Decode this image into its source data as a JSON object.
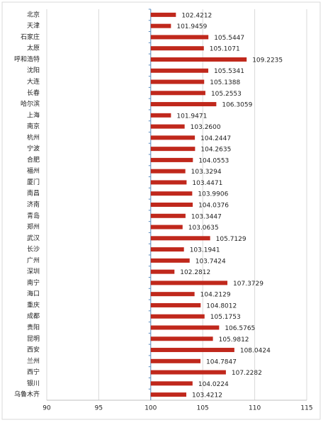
{
  "chart_data": {
    "type": "hbar",
    "categories": [
      "北京",
      "天津",
      "石家庄",
      "太原",
      "呼和浩特",
      "沈阳",
      "大连",
      "长春",
      "哈尔滨",
      "上海",
      "南京",
      "杭州",
      "宁波",
      "合肥",
      "福州",
      "厦门",
      "南昌",
      "济南",
      "青岛",
      "郑州",
      "武汉",
      "长沙",
      "广州",
      "深圳",
      "南宁",
      "海口",
      "重庆",
      "成都",
      "贵阳",
      "昆明",
      "西安",
      "兰州",
      "西宁",
      "银川",
      "乌鲁木齐"
    ],
    "values": [
      102.4212,
      101.9459,
      105.5447,
      105.1071,
      109.2235,
      105.5341,
      105.1388,
      105.2553,
      106.3059,
      101.9471,
      103.26,
      104.2447,
      104.2635,
      104.0553,
      103.3294,
      103.4471,
      103.9906,
      104.0376,
      103.3447,
      103.0635,
      105.7129,
      103.1941,
      103.7424,
      102.2812,
      107.3729,
      104.2129,
      104.8012,
      105.1753,
      106.5765,
      105.9812,
      108.0424,
      104.7847,
      107.2282,
      104.0224,
      103.4212
    ],
    "value_labels": [
      "102.4212",
      "101.9459",
      "105.5447",
      "105.1071",
      "109.2235",
      "105.5341",
      "105.1388",
      "105.2553",
      "106.3059",
      "101.9471",
      "103.2600",
      "104.2447",
      "104.2635",
      "104.0553",
      "103.3294",
      "103.4471",
      "103.9906",
      "104.0376",
      "103.3447",
      "103.0635",
      "105.7129",
      "103.1941",
      "103.7424",
      "102.2812",
      "107.3729",
      "104.2129",
      "104.8012",
      "105.1753",
      "106.5765",
      "105.9812",
      "108.0424",
      "104.7847",
      "107.2282",
      "104.0224",
      "103.4212"
    ],
    "color": "#c0281c",
    "baseline": 100,
    "xlim": [
      90,
      115
    ],
    "xticks": [
      90,
      95,
      100,
      105,
      110,
      115
    ],
    "grid": true
  }
}
